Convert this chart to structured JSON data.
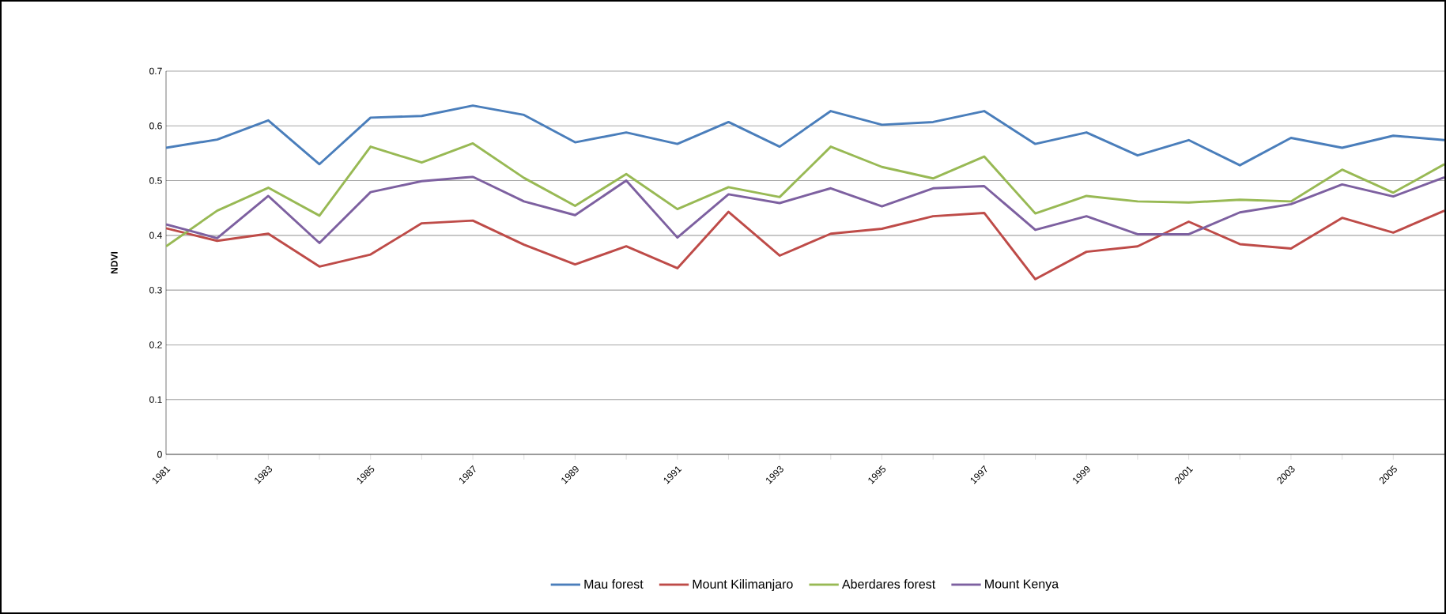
{
  "chart_data": {
    "type": "line",
    "ylabel": "NDVI",
    "categories": [
      "1981",
      null,
      "1983",
      null,
      "1985",
      null,
      "1987",
      null,
      "1989",
      null,
      "1991",
      null,
      "1993",
      null,
      "1995",
      null,
      "1997",
      null,
      "1999",
      null,
      "2001",
      null,
      "2003",
      null,
      "2005",
      null
    ],
    "series": [
      {
        "name": "Mau forest",
        "color": "#4a7ebb",
        "values": [
          0.56,
          0.575,
          0.61,
          0.53,
          0.615,
          0.618,
          0.637,
          0.62,
          0.57,
          0.588,
          0.567,
          0.607,
          0.562,
          0.627,
          0.602,
          0.607,
          0.627,
          0.567,
          0.588,
          0.546,
          0.574,
          0.528,
          0.578,
          0.56,
          0.582,
          0.574
        ]
      },
      {
        "name": "Mount Kilimanjaro",
        "color": "#be4b48",
        "values": [
          0.413,
          0.39,
          0.403,
          0.343,
          0.365,
          0.422,
          0.427,
          0.383,
          0.347,
          0.38,
          0.34,
          0.443,
          0.363,
          0.403,
          0.412,
          0.435,
          0.441,
          0.32,
          0.37,
          0.38,
          0.425,
          0.384,
          0.376,
          0.432,
          0.405,
          0.445
        ]
      },
      {
        "name": "Aberdares forest",
        "color": "#98b954",
        "values": [
          0.38,
          0.445,
          0.487,
          0.436,
          0.562,
          0.533,
          0.568,
          0.505,
          0.454,
          0.512,
          0.448,
          0.488,
          0.47,
          0.562,
          0.525,
          0.504,
          0.544,
          0.44,
          0.472,
          0.462,
          0.46,
          0.465,
          0.462,
          0.52,
          0.478,
          0.53
        ]
      },
      {
        "name": "Mount Kenya",
        "color": "#7d60a0",
        "values": [
          0.42,
          0.395,
          0.472,
          0.386,
          0.479,
          0.499,
          0.507,
          0.462,
          0.437,
          0.5,
          0.396,
          0.475,
          0.459,
          0.486,
          0.453,
          0.486,
          0.49,
          0.41,
          0.435,
          0.402,
          0.402,
          0.442,
          0.457,
          0.493,
          0.471,
          0.506
        ]
      }
    ],
    "ylim": [
      0,
      0.7
    ],
    "yticks": [
      0,
      0.1,
      0.2,
      0.3,
      0.4,
      0.5,
      0.6,
      0.7
    ],
    "grid": "y",
    "legend": "bottom"
  }
}
